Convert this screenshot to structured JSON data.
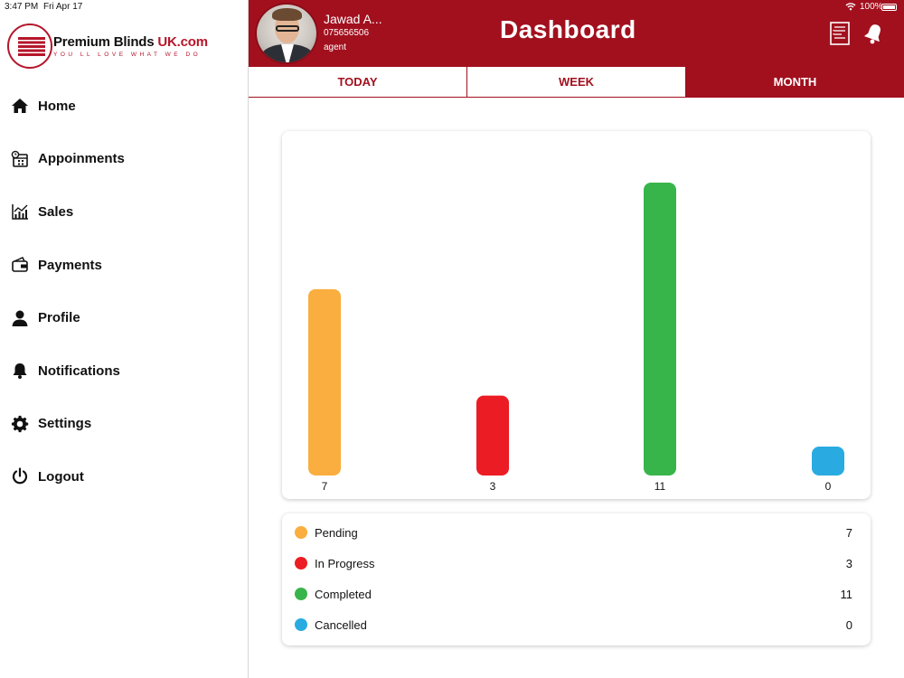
{
  "status_bar": {
    "time": "3:47 PM",
    "date": "Fri Apr 17",
    "battery": "100%"
  },
  "brand": {
    "name": "Premium Blinds",
    "name_accent": "UK.com",
    "tagline": "YOU LL LOVE WHAT WE DO"
  },
  "sidebar": {
    "items": [
      {
        "label": "Home",
        "icon": "home-icon"
      },
      {
        "label": "Appoinments",
        "icon": "calendar-icon"
      },
      {
        "label": "Sales",
        "icon": "chart-icon"
      },
      {
        "label": "Payments",
        "icon": "wallet-icon"
      },
      {
        "label": "Profile",
        "icon": "user-icon"
      },
      {
        "label": "Notifications",
        "icon": "bell-icon"
      },
      {
        "label": "Settings",
        "icon": "gear-icon"
      },
      {
        "label": "Logout",
        "icon": "power-icon"
      }
    ]
  },
  "header": {
    "title": "Dashboard",
    "user_name": "Jawad A...",
    "user_phone": "075656506",
    "user_role": "agent"
  },
  "tabs": [
    {
      "label": "TODAY",
      "active": false
    },
    {
      "label": "WEEK",
      "active": false
    },
    {
      "label": "MONTH",
      "active": true
    }
  ],
  "colors": {
    "brand": "#a2101e",
    "pending": "#f9ae3f",
    "in_progress": "#ec1c24",
    "completed": "#38b54a",
    "cancelled": "#29abe2"
  },
  "chart_data": {
    "type": "bar",
    "categories": [
      "Pending",
      "In Progress",
      "Completed",
      "Cancelled"
    ],
    "values": [
      7,
      3,
      11,
      0
    ],
    "colors": [
      "#f9ae3f",
      "#ec1c24",
      "#38b54a",
      "#29abe2"
    ],
    "ylim": [
      0,
      11
    ],
    "grid": false
  },
  "legend": [
    {
      "label": "Pending",
      "value": "7",
      "color": "#f9ae3f"
    },
    {
      "label": "In Progress",
      "value": "3",
      "color": "#ec1c24"
    },
    {
      "label": "Completed",
      "value": "11",
      "color": "#38b54a"
    },
    {
      "label": "Cancelled",
      "value": "0",
      "color": "#29abe2"
    }
  ]
}
